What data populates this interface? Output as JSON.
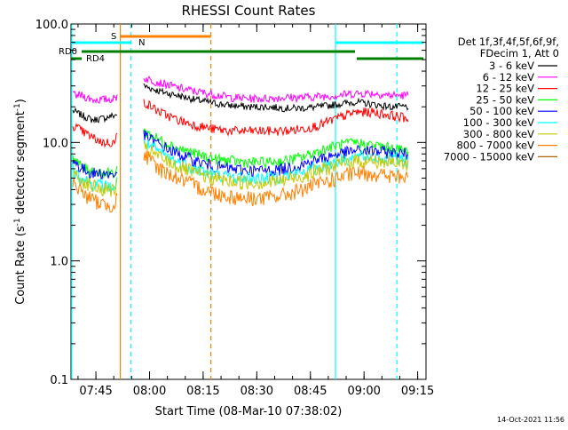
{
  "chart_data": {
    "type": "line",
    "title": "RHESSI Count Rates",
    "xlabel": "Start Time (08-Mar-10 07:38:02)",
    "ylabel_main": "Count Rate (s",
    "ylabel_sup": "-1",
    "ylabel_tail": " detector segment",
    "ylabel_sup2": "-1",
    "ylabel_end": ")",
    "y_scale": "log",
    "ylim": [
      0.1,
      100
    ],
    "xlim": [
      "07:38:02",
      "09:17:20"
    ],
    "x_ticks": [
      "07:45",
      "08:00",
      "08:15",
      "08:30",
      "08:45",
      "09:00",
      "09:15"
    ],
    "y_ticks": [
      "0.1",
      "1.0",
      "10.0",
      "100.0"
    ],
    "legend_header": [
      "Det 1f,3f,4f,5f,6f,9f,",
      "FDecim 1, Att 0"
    ],
    "legend_placement": "right",
    "footer": "14-Oct-2021 11:56",
    "series": [
      {
        "name": "3 - 6 keV",
        "color": "#000000",
        "values": [
          [
            0.5,
            18.5
          ],
          [
            3,
            17
          ],
          [
            6,
            15.5
          ],
          [
            9,
            16
          ],
          [
            12.5,
            17
          ],
          [
            13,
            17.5
          ],
          [
            20.5,
            30
          ],
          [
            25,
            27
          ],
          [
            30,
            25
          ],
          [
            35,
            23
          ],
          [
            40,
            21.5
          ],
          [
            45,
            20.5
          ],
          [
            50,
            20
          ],
          [
            55,
            20
          ],
          [
            60,
            19.5
          ],
          [
            65,
            19.5
          ],
          [
            70,
            20
          ],
          [
            75,
            21
          ],
          [
            80,
            22
          ],
          [
            85,
            21
          ],
          [
            90,
            20
          ],
          [
            95,
            20
          ]
        ]
      },
      {
        "name": "6 - 12 keV",
        "color": "#ff00ff",
        "values": [
          [
            0.5,
            25
          ],
          [
            3,
            25
          ],
          [
            6,
            23
          ],
          [
            9,
            23
          ],
          [
            12.5,
            23.5
          ],
          [
            13,
            25
          ],
          [
            20.5,
            35
          ],
          [
            25,
            32
          ],
          [
            30,
            29
          ],
          [
            35,
            27
          ],
          [
            40,
            25.5
          ],
          [
            45,
            24
          ],
          [
            50,
            23.5
          ],
          [
            55,
            23.5
          ],
          [
            60,
            24
          ],
          [
            65,
            24
          ],
          [
            70,
            24.5
          ],
          [
            75,
            25
          ],
          [
            80,
            26
          ],
          [
            85,
            26
          ],
          [
            90,
            25
          ],
          [
            95,
            25
          ]
        ]
      },
      {
        "name": "12 - 25 keV",
        "color": "#ff0000",
        "values": [
          [
            0.5,
            14
          ],
          [
            3,
            12.5
          ],
          [
            6,
            11
          ],
          [
            9,
            10
          ],
          [
            12.5,
            10
          ],
          [
            13,
            12
          ],
          [
            20.5,
            22
          ],
          [
            25,
            18
          ],
          [
            30,
            15.5
          ],
          [
            35,
            14
          ],
          [
            40,
            13
          ],
          [
            45,
            12.5
          ],
          [
            50,
            12.5
          ],
          [
            55,
            12.5
          ],
          [
            60,
            12.5
          ],
          [
            65,
            13
          ],
          [
            70,
            14
          ],
          [
            75,
            16
          ],
          [
            80,
            18
          ],
          [
            85,
            18
          ],
          [
            90,
            17
          ],
          [
            95,
            16
          ]
        ]
      },
      {
        "name": "25 - 50 keV",
        "color": "#00ff00",
        "values": [
          [
            0.5,
            7.5
          ],
          [
            3,
            6.2
          ],
          [
            6,
            5.8
          ],
          [
            9,
            5.5
          ],
          [
            12.5,
            5.5
          ],
          [
            13,
            6
          ],
          [
            20.5,
            12.5
          ],
          [
            25,
            10.5
          ],
          [
            30,
            9
          ],
          [
            35,
            8
          ],
          [
            40,
            7.3
          ],
          [
            45,
            7
          ],
          [
            50,
            6.8
          ],
          [
            55,
            6.8
          ],
          [
            60,
            7
          ],
          [
            65,
            7.5
          ],
          [
            70,
            8.5
          ],
          [
            75,
            9.5
          ],
          [
            80,
            10
          ],
          [
            85,
            9.5
          ],
          [
            90,
            9
          ],
          [
            95,
            8.5
          ]
        ]
      },
      {
        "name": "50 - 100 keV",
        "color": "#0000ff",
        "values": [
          [
            0.5,
            7
          ],
          [
            3,
            6
          ],
          [
            6,
            5.5
          ],
          [
            9,
            5.5
          ],
          [
            12.5,
            5.3
          ],
          [
            13,
            6
          ],
          [
            20.5,
            11.5
          ],
          [
            25,
            9.5
          ],
          [
            30,
            8
          ],
          [
            35,
            7
          ],
          [
            40,
            6.3
          ],
          [
            45,
            6
          ],
          [
            50,
            5.8
          ],
          [
            55,
            5.8
          ],
          [
            60,
            6
          ],
          [
            65,
            6.5
          ],
          [
            70,
            7.2
          ],
          [
            75,
            8
          ],
          [
            80,
            8.5
          ],
          [
            85,
            8.5
          ],
          [
            90,
            8.2
          ],
          [
            95,
            8
          ]
        ]
      },
      {
        "name": "100 - 300 keV",
        "color": "#00ffff",
        "values": [
          [
            0.5,
            6
          ],
          [
            3,
            5
          ],
          [
            6,
            4.5
          ],
          [
            9,
            4.3
          ],
          [
            12.5,
            4.2
          ],
          [
            13,
            4.8
          ],
          [
            20.5,
            10
          ],
          [
            25,
            8.2
          ],
          [
            30,
            6.8
          ],
          [
            35,
            6
          ],
          [
            40,
            5.4
          ],
          [
            45,
            5.1
          ],
          [
            50,
            5
          ],
          [
            55,
            5
          ],
          [
            60,
            5.2
          ],
          [
            65,
            5.6
          ],
          [
            70,
            6.2
          ],
          [
            75,
            7
          ],
          [
            80,
            7.5
          ],
          [
            85,
            7.5
          ],
          [
            90,
            7.2
          ],
          [
            95,
            7
          ]
        ]
      },
      {
        "name": "300 - 800 keV",
        "color": "#c8c800",
        "values": [
          [
            0.5,
            5.5
          ],
          [
            3,
            4.8
          ],
          [
            6,
            4.3
          ],
          [
            9,
            4
          ],
          [
            12.5,
            4
          ],
          [
            13,
            4.5
          ],
          [
            20.5,
            9
          ],
          [
            25,
            7.5
          ],
          [
            30,
            6.3
          ],
          [
            35,
            5.5
          ],
          [
            40,
            5
          ],
          [
            45,
            4.7
          ],
          [
            50,
            4.6
          ],
          [
            55,
            4.6
          ],
          [
            60,
            4.8
          ],
          [
            65,
            5.2
          ],
          [
            70,
            5.8
          ],
          [
            75,
            6.5
          ],
          [
            80,
            7
          ],
          [
            85,
            7
          ],
          [
            90,
            6.8
          ],
          [
            95,
            6.5
          ]
        ]
      },
      {
        "name": "800 - 7000 keV",
        "color": "#ff8000",
        "values": [
          [
            0.5,
            4.8
          ],
          [
            3,
            3.8
          ],
          [
            6,
            3.3
          ],
          [
            9,
            3
          ],
          [
            12.5,
            3
          ],
          [
            13,
            3.6
          ],
          [
            20.5,
            7.8
          ],
          [
            25,
            6
          ],
          [
            30,
            5
          ],
          [
            35,
            4.3
          ],
          [
            40,
            3.8
          ],
          [
            45,
            3.5
          ],
          [
            50,
            3.4
          ],
          [
            55,
            3.4
          ],
          [
            60,
            3.6
          ],
          [
            65,
            4
          ],
          [
            70,
            4.5
          ],
          [
            75,
            5
          ],
          [
            80,
            5.5
          ],
          [
            85,
            5.5
          ],
          [
            90,
            5.2
          ],
          [
            95,
            5
          ]
        ]
      },
      {
        "name": "7000 - 15000 keV",
        "color": "#b06400",
        "values": []
      }
    ],
    "flags": [
      {
        "name": "S",
        "color": "#ff8000",
        "start": 13.9,
        "end": 39.4
      },
      {
        "name": "N",
        "color": "#00ffff",
        "start": 0,
        "end": 16.9
      },
      {
        "name": "N",
        "color": "#00ffff",
        "start": 74.5,
        "end": 99.3
      },
      {
        "name": "RD0",
        "color": "#008000",
        "start": 3,
        "end": 80
      },
      {
        "name": "RD4",
        "color": "#008000",
        "start": 0,
        "end": 3
      },
      {
        "name": "RD4",
        "color": "#008000",
        "start": 80.5,
        "end": 99.3
      }
    ],
    "event_lines": [
      {
        "color": "#00ffff",
        "style": "solid",
        "at": 0.2
      },
      {
        "color": "#ff8000",
        "style": "solid",
        "at": 13.9
      },
      {
        "color": "#00ffff",
        "style": "dashed",
        "at": 16.9
      },
      {
        "color": "#ff8000",
        "style": "dashed",
        "at": 39.4
      },
      {
        "color": "#00ffff",
        "style": "solid",
        "at": 74.5
      },
      {
        "color": "#00ffff",
        "style": "dashed",
        "at": 91.8
      }
    ]
  }
}
